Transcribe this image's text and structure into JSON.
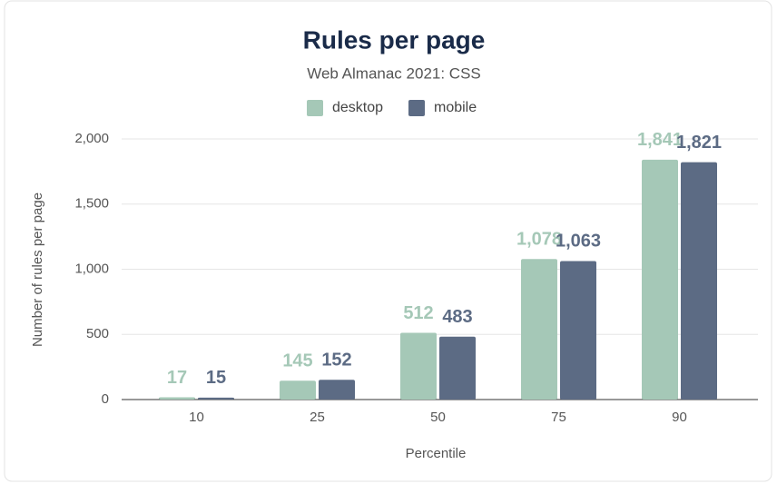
{
  "chart_data": {
    "type": "bar",
    "title": "Rules per page",
    "subtitle": "Web Almanac 2021: CSS",
    "x_label": "Percentile",
    "y_label": "Number of rules per page",
    "categories": [
      "10",
      "25",
      "50",
      "75",
      "90"
    ],
    "series": [
      {
        "name": "desktop",
        "color": "#a5c8b7",
        "values": [
          17,
          145,
          512,
          1078,
          1841
        ],
        "value_labels": [
          "17",
          "145",
          "512",
          "1,078",
          "1,841"
        ]
      },
      {
        "name": "mobile",
        "color": "#5c6b84",
        "values": [
          15,
          152,
          483,
          1063,
          1821
        ],
        "value_labels": [
          "15",
          "152",
          "483",
          "1,063",
          "1,821"
        ]
      }
    ],
    "ylim": [
      0,
      2000
    ],
    "yticks": [
      0,
      500,
      {
        "value": 1000,
        "label": "1,000"
      },
      {
        "value": 1500,
        "label": "1,500"
      },
      {
        "value": 2000,
        "label": "2,000"
      }
    ],
    "grid": true,
    "legend": "top"
  }
}
